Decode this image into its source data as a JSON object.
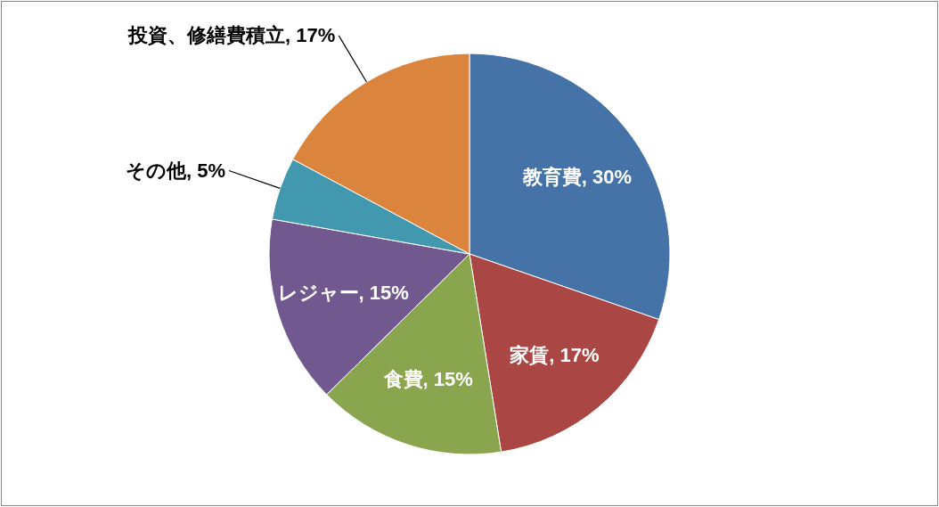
{
  "chart_data": {
    "type": "pie",
    "categories": [
      "教育費",
      "家賃",
      "食費",
      "レジャー",
      "その他",
      "投資、修繕費積立"
    ],
    "values": [
      30,
      17,
      15,
      15,
      5,
      17
    ],
    "colors": [
      "#4572a7",
      "#aa4643",
      "#89a54e",
      "#71588f",
      "#4198af",
      "#db843d"
    ],
    "value_labels": [
      "30%",
      "17%",
      "15%",
      "15%",
      "5%",
      "17%"
    ],
    "legend": false
  }
}
